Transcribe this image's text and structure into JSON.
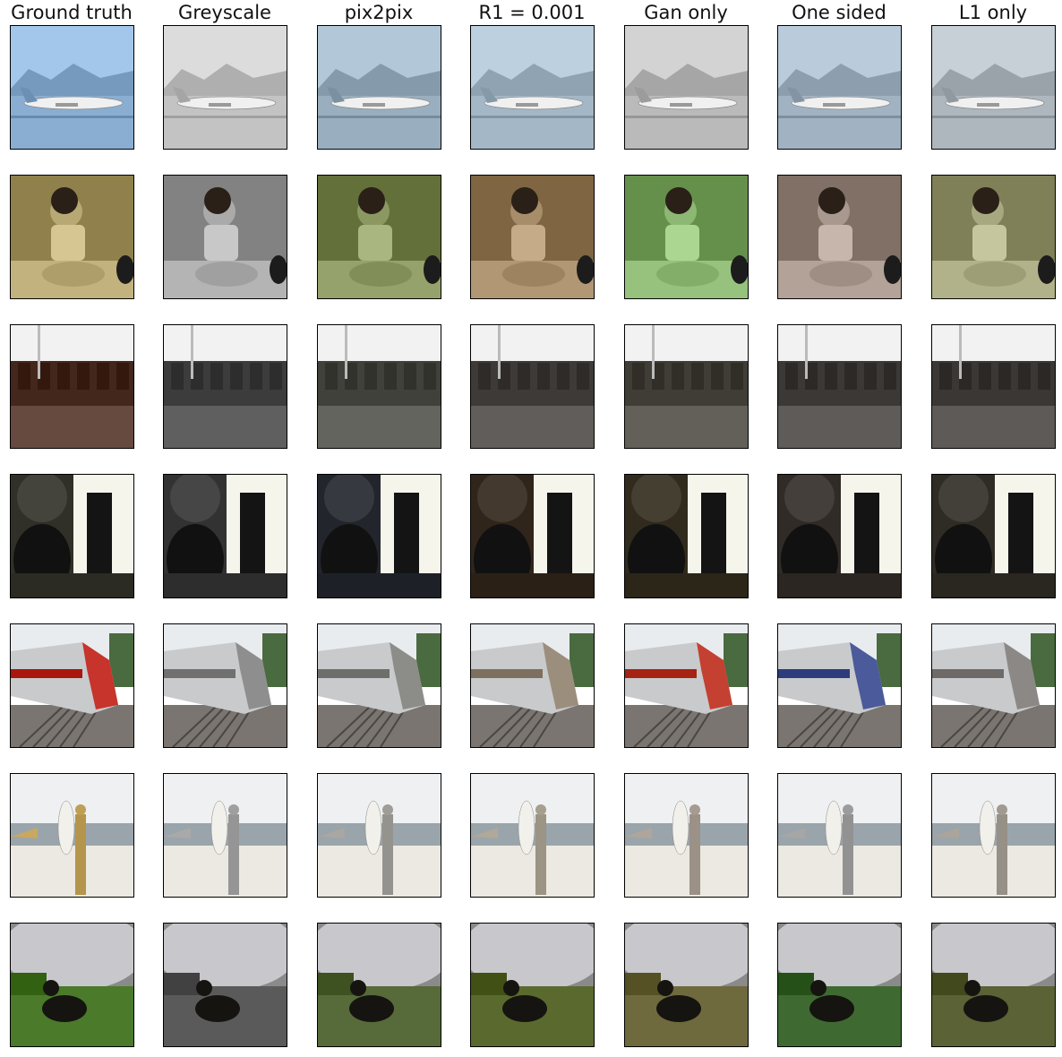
{
  "figure": {
    "columns": [
      "Ground truth",
      "Greyscale",
      "pix2pix",
      "R1 = 0.001",
      "Gan only",
      "One sided",
      "L1 only"
    ],
    "rows": [
      {
        "scene": "airplane",
        "colors": [
          "#8fb3d6",
          "#c8c8c8",
          "#9eb4c4",
          "#a9bccb",
          "#bfbfbf",
          "#a6b8c8",
          "#b2bcc2"
        ]
      },
      {
        "scene": "child",
        "colors": [
          "#9a8a55",
          "#8c8c8c",
          "#6d7a44",
          "#8a6f4c",
          "#6f9a55",
          "#8a7a70",
          "#8a8a62"
        ]
      },
      {
        "scene": "train-cars",
        "colors": [
          "#5c4036",
          "#555555",
          "#5a5a55",
          "#565350",
          "#58564f",
          "#55514e",
          "#54504d"
        ]
      },
      {
        "scene": "vase",
        "colors": [
          "#3a3a32",
          "#3c3c3c",
          "#2c3036",
          "#3a2f25",
          "#3b3528",
          "#3a3530",
          "#39352f"
        ]
      },
      {
        "scene": "express-train",
        "colors": [
          "#c6342c",
          "#8e8e8e",
          "#8c8c88",
          "#9b8e7c",
          "#c44030",
          "#4a5a9a",
          "#8c8886"
        ]
      },
      {
        "scene": "beach",
        "colors": [
          "#c9a860",
          "#a9a9a9",
          "#a8a7a2",
          "#b0a898",
          "#b0a59b",
          "#a6a6a6",
          "#aaa49b"
        ]
      },
      {
        "scene": "dog-field",
        "colors": [
          "#4a7a2a",
          "#5a5a5a",
          "#566a3a",
          "#5a6a2e",
          "#6e6a3e",
          "#3e6a32",
          "#5a6236"
        ]
      }
    ]
  }
}
